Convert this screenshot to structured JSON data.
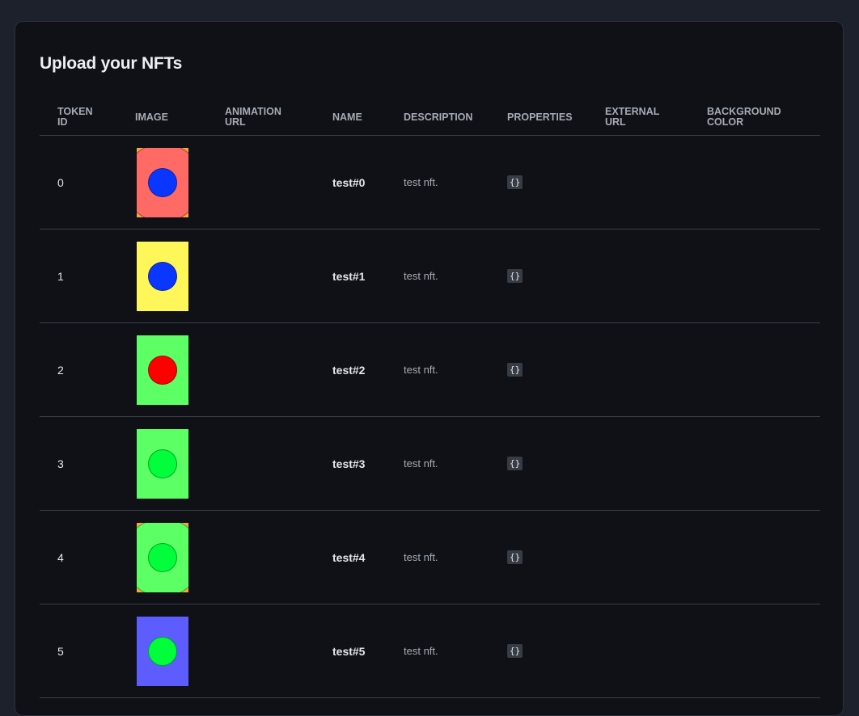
{
  "page": {
    "title": "Upload your NFTs"
  },
  "table": {
    "headers": [
      "TOKEN\nID",
      "IMAGE",
      "ANIMATION\nURL",
      "NAME",
      "DESCRIPTION",
      "PROPERTIES",
      "EXTERNAL\nURL",
      "BACKGROUND\nCOLOR"
    ],
    "rows": [
      {
        "token_id": "0",
        "name": "test#0",
        "description": "test nft.",
        "properties": "{}",
        "animation_url": "",
        "external_url": "",
        "background_color": "",
        "image": {
          "bg": "#f5a836",
          "circle": "#ff6a64",
          "dot": "#0a37ff"
        }
      },
      {
        "token_id": "1",
        "name": "test#1",
        "description": "test nft.",
        "properties": "{}",
        "animation_url": "",
        "external_url": "",
        "background_color": "",
        "image": {
          "bg": "#fff65a",
          "circle": "",
          "dot": "#0a37ff"
        }
      },
      {
        "token_id": "2",
        "name": "test#2",
        "description": "test nft.",
        "properties": "{}",
        "animation_url": "",
        "external_url": "",
        "background_color": "",
        "image": {
          "bg": "#5cff64",
          "circle": "",
          "dot": "#ff0000"
        }
      },
      {
        "token_id": "3",
        "name": "test#3",
        "description": "test nft.",
        "properties": "{}",
        "animation_url": "",
        "external_url": "",
        "background_color": "",
        "image": {
          "bg": "#5cff64",
          "circle": "",
          "dot": "#00ff3a"
        }
      },
      {
        "token_id": "4",
        "name": "test#4",
        "description": "test nft.",
        "properties": "{}",
        "animation_url": "",
        "external_url": "",
        "background_color": "",
        "image": {
          "bg": "#f5a836",
          "circle": "#5cff64",
          "dot": "#00ff3a"
        }
      },
      {
        "token_id": "5",
        "name": "test#5",
        "description": "test nft.",
        "properties": "{}",
        "animation_url": "",
        "external_url": "",
        "background_color": "",
        "image": {
          "bg": "#5c5cff",
          "circle": "",
          "dot": "#00ff3a"
        }
      }
    ]
  }
}
